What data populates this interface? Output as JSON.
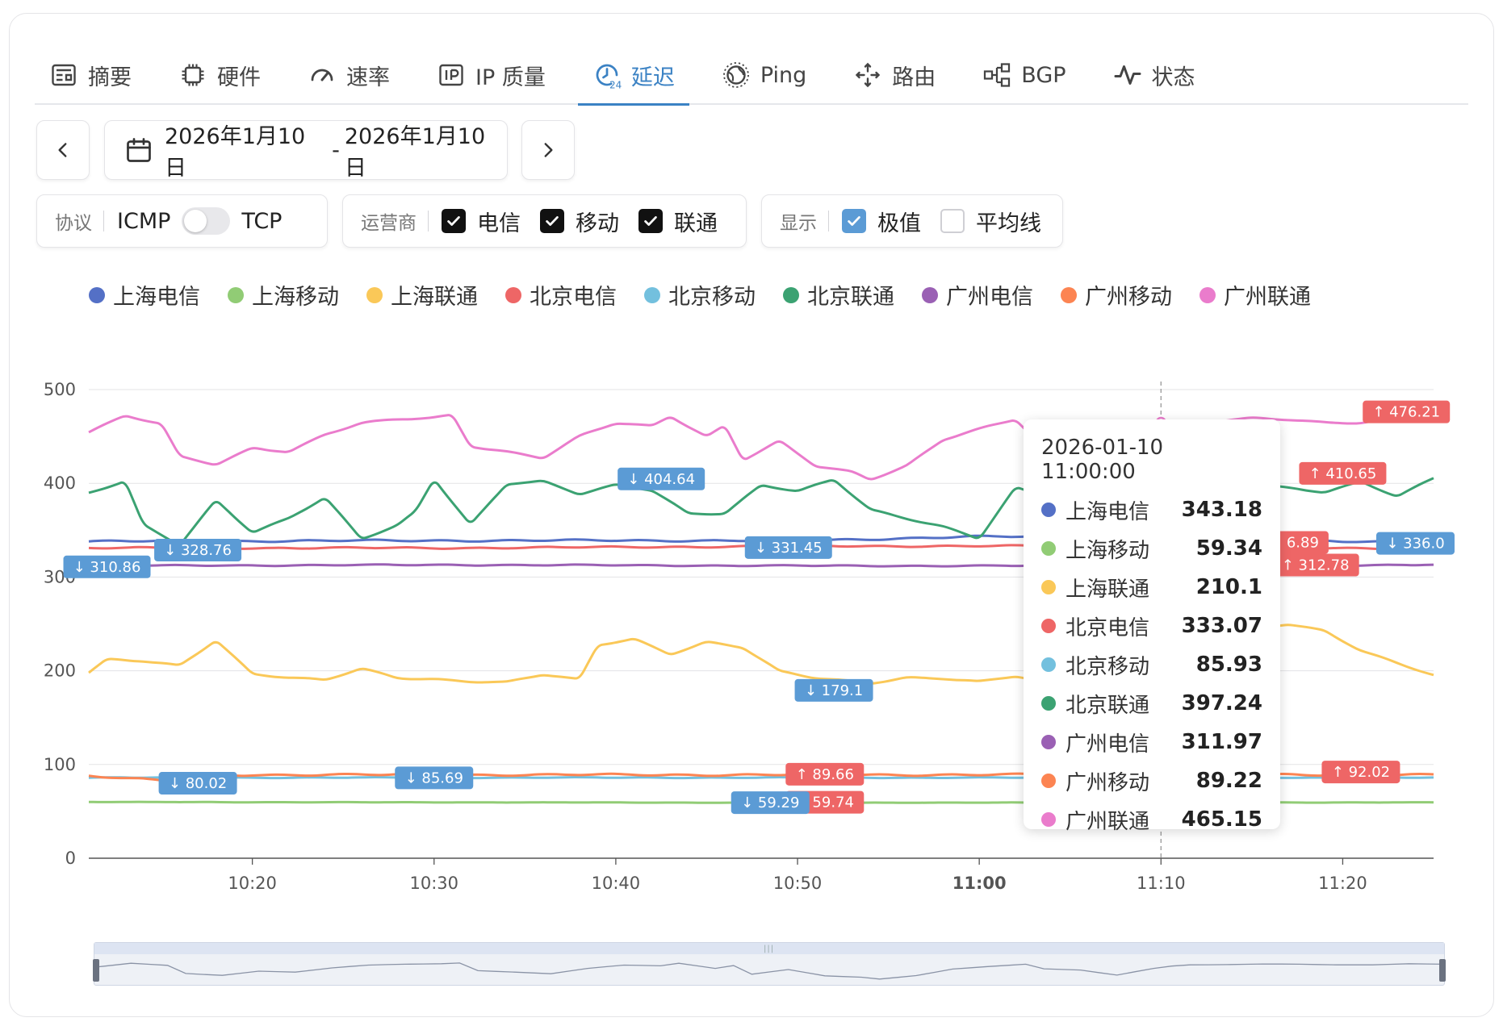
{
  "tabs": [
    {
      "label": "摘要",
      "icon": "newspaper-icon",
      "active": false
    },
    {
      "label": "硬件",
      "icon": "cpu-chip-icon",
      "active": false
    },
    {
      "label": "速率",
      "icon": "gauge-icon",
      "active": false
    },
    {
      "label": "IP 质量",
      "icon": "ip-badge-icon",
      "active": false
    },
    {
      "label": "延迟",
      "icon": "clock-24-icon",
      "active": true
    },
    {
      "label": "Ping",
      "icon": "globe-icon",
      "active": false
    },
    {
      "label": "路由",
      "icon": "route-arrows-icon",
      "active": false
    },
    {
      "label": "BGP",
      "icon": "network-nodes-icon",
      "active": false
    },
    {
      "label": "状态",
      "icon": "pulse-icon",
      "active": false
    }
  ],
  "date_range": {
    "start": "2026年1月10日",
    "separator": "-",
    "end": "2026年1月10日"
  },
  "protocol": {
    "label": "协议",
    "option_left": "ICMP",
    "option_right": "TCP",
    "selected": "ICMP"
  },
  "carrier": {
    "label": "运营商",
    "options": [
      {
        "label": "电信",
        "checked": true
      },
      {
        "label": "移动",
        "checked": true
      },
      {
        "label": "联通",
        "checked": true
      }
    ]
  },
  "display": {
    "label": "显示",
    "options": [
      {
        "label": "极值",
        "checked": true
      },
      {
        "label": "平均线",
        "checked": false
      }
    ]
  },
  "legend": [
    {
      "name": "上海电信",
      "color": "#5470c6"
    },
    {
      "name": "上海移动",
      "color": "#91cc75"
    },
    {
      "name": "上海联通",
      "color": "#fac858"
    },
    {
      "name": "北京电信",
      "color": "#ee6666"
    },
    {
      "name": "北京移动",
      "color": "#73c0de"
    },
    {
      "name": "北京联通",
      "color": "#3ba272"
    },
    {
      "name": "广州电信",
      "color": "#9a60b4"
    },
    {
      "name": "广州移动",
      "color": "#fc8452"
    },
    {
      "name": "广州联通",
      "color": "#ea7ccc"
    }
  ],
  "tooltip": {
    "title": "2026-01-10 11:00:00",
    "rows": [
      {
        "name": "上海电信",
        "value": "343.18",
        "color": "#5470c6"
      },
      {
        "name": "上海移动",
        "value": "59.34",
        "color": "#91cc75"
      },
      {
        "name": "上海联通",
        "value": "210.1",
        "color": "#fac858"
      },
      {
        "name": "北京电信",
        "value": "333.07",
        "color": "#ee6666"
      },
      {
        "name": "北京移动",
        "value": "85.93",
        "color": "#73c0de"
      },
      {
        "name": "北京联通",
        "value": "397.24",
        "color": "#3ba272"
      },
      {
        "name": "广州电信",
        "value": "311.97",
        "color": "#9a60b4"
      },
      {
        "name": "广州移动",
        "value": "89.22",
        "color": "#fc8452"
      },
      {
        "name": "广州联通",
        "value": "465.15",
        "color": "#ea7ccc"
      }
    ]
  },
  "chart_data": {
    "type": "line",
    "ylim": [
      0,
      500
    ],
    "yticks": [
      0,
      100,
      200,
      300,
      400,
      500
    ],
    "xlim_minutes": [
      "10:11",
      "10:25+1h"
    ],
    "xticks": [
      "10:20",
      "10:30",
      "10:40",
      "10:50",
      "11:00",
      "11:10",
      "11:20"
    ],
    "highlighted_xtick": "11:00",
    "cursor_time": "11:00",
    "series": [
      {
        "name": "上海电信",
        "color": "#5470c6",
        "base": 338,
        "amp": 3,
        "points": [
          [
            0,
            338
          ],
          [
            20,
            339
          ],
          [
            40,
            339
          ],
          [
            48,
            343
          ],
          [
            55,
            343
          ],
          [
            60,
            343.18
          ],
          [
            74,
            336
          ]
        ]
      },
      {
        "name": "上海移动",
        "color": "#91cc75",
        "base": 60,
        "amp": 0.4,
        "points": [
          [
            0,
            60
          ],
          [
            37,
            59.3
          ],
          [
            60,
            59.34
          ],
          [
            74,
            59.6
          ]
        ]
      },
      {
        "name": "上海联通",
        "color": "#fac858",
        "base": 200,
        "amp": 25,
        "points": [
          [
            0,
            198
          ],
          [
            1,
            212
          ],
          [
            3,
            210
          ],
          [
            5,
            205
          ],
          [
            7,
            233
          ],
          [
            9,
            197
          ],
          [
            11,
            193
          ],
          [
            13,
            190
          ],
          [
            15,
            202
          ],
          [
            17,
            192
          ],
          [
            19,
            191
          ],
          [
            21,
            189
          ],
          [
            23,
            188
          ],
          [
            25,
            196
          ],
          [
            27,
            190
          ],
          [
            28,
            227
          ],
          [
            30,
            234
          ],
          [
            32,
            218
          ],
          [
            34,
            231
          ],
          [
            36,
            225
          ],
          [
            38,
            199
          ],
          [
            40,
            192
          ],
          [
            43,
            187
          ],
          [
            45,
            193
          ],
          [
            47,
            192
          ],
          [
            49,
            188
          ],
          [
            51,
            194
          ],
          [
            53,
            186
          ],
          [
            55,
            195
          ],
          [
            57,
            199
          ],
          [
            59,
            210
          ],
          [
            60,
            210.1
          ],
          [
            62,
            237
          ],
          [
            64,
            245
          ],
          [
            66,
            250
          ],
          [
            68,
            243
          ],
          [
            70,
            222
          ],
          [
            72,
            208
          ],
          [
            74,
            195
          ]
        ]
      },
      {
        "name": "北京电信",
        "color": "#ee6666",
        "base": 331,
        "amp": 2,
        "points": [
          [
            0,
            331
          ],
          [
            20,
            331
          ],
          [
            40,
            333
          ],
          [
            60,
            333.07
          ],
          [
            74,
            330
          ]
        ]
      },
      {
        "name": "北京移动",
        "color": "#73c0de",
        "base": 86,
        "amp": 1,
        "points": [
          [
            0,
            86
          ],
          [
            20,
            86
          ],
          [
            40,
            86
          ],
          [
            60,
            85.93
          ],
          [
            74,
            86
          ]
        ]
      },
      {
        "name": "北京联通",
        "color": "#3ba272",
        "base": 380,
        "amp": 30,
        "points": [
          [
            0,
            390
          ],
          [
            2,
            402
          ],
          [
            3,
            355
          ],
          [
            5,
            334
          ],
          [
            7,
            382
          ],
          [
            9,
            348
          ],
          [
            11,
            363
          ],
          [
            13,
            385
          ],
          [
            15,
            340
          ],
          [
            17,
            355
          ],
          [
            18,
            370
          ],
          [
            19,
            405
          ],
          [
            21,
            356
          ],
          [
            23,
            400
          ],
          [
            25,
            402
          ],
          [
            27,
            388
          ],
          [
            29,
            398
          ],
          [
            31,
            393
          ],
          [
            33,
            368
          ],
          [
            35,
            368
          ],
          [
            37,
            398
          ],
          [
            39,
            391
          ],
          [
            41,
            404
          ],
          [
            43,
            372
          ],
          [
            45,
            363
          ],
          [
            47,
            354
          ],
          [
            49,
            341
          ],
          [
            51,
            395
          ],
          [
            53,
            383
          ],
          [
            55,
            395
          ],
          [
            57,
            397
          ],
          [
            59,
            396
          ],
          [
            60,
            397.24
          ],
          [
            62,
            398
          ],
          [
            64,
            399
          ],
          [
            66,
            395
          ],
          [
            68,
            391
          ],
          [
            70,
            402
          ],
          [
            72,
            386
          ],
          [
            74,
            405
          ]
        ]
      },
      {
        "name": "广州电信",
        "color": "#9a60b4",
        "base": 312,
        "amp": 1.5,
        "points": [
          [
            0,
            312
          ],
          [
            20,
            313
          ],
          [
            40,
            312
          ],
          [
            60,
            311.97
          ],
          [
            74,
            313
          ]
        ]
      },
      {
        "name": "广州移动",
        "color": "#fc8452",
        "base": 89,
        "amp": 3,
        "points": [
          [
            0,
            88
          ],
          [
            3,
            84
          ],
          [
            6,
            80
          ],
          [
            8,
            89
          ],
          [
            20,
            89
          ],
          [
            40,
            89
          ],
          [
            60,
            89.22
          ],
          [
            74,
            89
          ]
        ]
      },
      {
        "name": "广州联通",
        "color": "#ea7ccc",
        "base": 455,
        "amp": 30,
        "points": [
          [
            0,
            455
          ],
          [
            2,
            472
          ],
          [
            4,
            463
          ],
          [
            5,
            428
          ],
          [
            7,
            420
          ],
          [
            9,
            438
          ],
          [
            11,
            434
          ],
          [
            13,
            452
          ],
          [
            15,
            464
          ],
          [
            17,
            468
          ],
          [
            19,
            470
          ],
          [
            20,
            473
          ],
          [
            21,
            440
          ],
          [
            23,
            434
          ],
          [
            25,
            427
          ],
          [
            27,
            450
          ],
          [
            29,
            464
          ],
          [
            31,
            461
          ],
          [
            32,
            472
          ],
          [
            34,
            450
          ],
          [
            35,
            462
          ],
          [
            36,
            425
          ],
          [
            38,
            445
          ],
          [
            40,
            418
          ],
          [
            42,
            412
          ],
          [
            43,
            404
          ],
          [
            45,
            419
          ],
          [
            47,
            447
          ],
          [
            49,
            458
          ],
          [
            51,
            468
          ],
          [
            52,
            448
          ],
          [
            54,
            443
          ],
          [
            56,
            421
          ],
          [
            58,
            450
          ],
          [
            59,
            460
          ],
          [
            60,
            465.15
          ],
          [
            62,
            466
          ],
          [
            64,
            469
          ],
          [
            66,
            468
          ],
          [
            68,
            465
          ],
          [
            70,
            465
          ],
          [
            72,
            470
          ],
          [
            74,
            468
          ]
        ]
      }
    ],
    "markers": [
      {
        "kind": "max",
        "text": "↑ 476.21",
        "t": 72.5,
        "v": 476.21,
        "color": "#ee6666"
      },
      {
        "kind": "max",
        "text": "↑ 410.65",
        "t": 69,
        "v": 410.65,
        "color": "#ee6666"
      },
      {
        "kind": "max",
        "text": "↑ 343.18",
        "t": 60.5,
        "v": 343.18,
        "color": "#ee6666"
      },
      {
        "kind": "max",
        "text": "↑ 312.78",
        "t": 67.5,
        "v": 312.78,
        "color": "#ee6666"
      },
      {
        "kind": "max",
        "text": "6.89",
        "t": 66.8,
        "v": 336.89,
        "color": "#ee6666"
      },
      {
        "kind": "max",
        "text": "↑ 89.66",
        "t": 40.5,
        "v": 89.66,
        "color": "#ee6666"
      },
      {
        "kind": "max",
        "text": "↑ 59.74",
        "t": 40.5,
        "v": 59.74,
        "color": "#ee6666"
      },
      {
        "kind": "max",
        "text": "↑ 92.02",
        "t": 70,
        "v": 92.02,
        "color": "#ee6666"
      },
      {
        "kind": "min",
        "text": "↓ 404.64",
        "t": 31.5,
        "v": 404.64,
        "color": "#5b9bd5"
      },
      {
        "kind": "min",
        "text": "↓ 328.76",
        "t": 6,
        "v": 328.76,
        "color": "#5b9bd5"
      },
      {
        "kind": "min",
        "text": "↓ 310.86",
        "t": 1,
        "v": 310.86,
        "color": "#5b9bd5"
      },
      {
        "kind": "min",
        "text": "↓ 331.45",
        "t": 38.5,
        "v": 331.45,
        "color": "#5b9bd5"
      },
      {
        "kind": "min",
        "text": "↓ 336.0",
        "t": 73,
        "v": 336.0,
        "color": "#5b9bd5"
      },
      {
        "kind": "min",
        "text": "↓ 179.1",
        "t": 41,
        "v": 179.1,
        "color": "#5b9bd5"
      },
      {
        "kind": "min",
        "text": "↓ 80.02",
        "t": 6,
        "v": 80.02,
        "color": "#5b9bd5"
      },
      {
        "kind": "min",
        "text": "↓ 85.69",
        "t": 19,
        "v": 85.69,
        "color": "#5b9bd5"
      },
      {
        "kind": "min",
        "text": "↓ 59.29",
        "t": 37.5,
        "v": 59.29,
        "color": "#5b9bd5"
      }
    ]
  }
}
